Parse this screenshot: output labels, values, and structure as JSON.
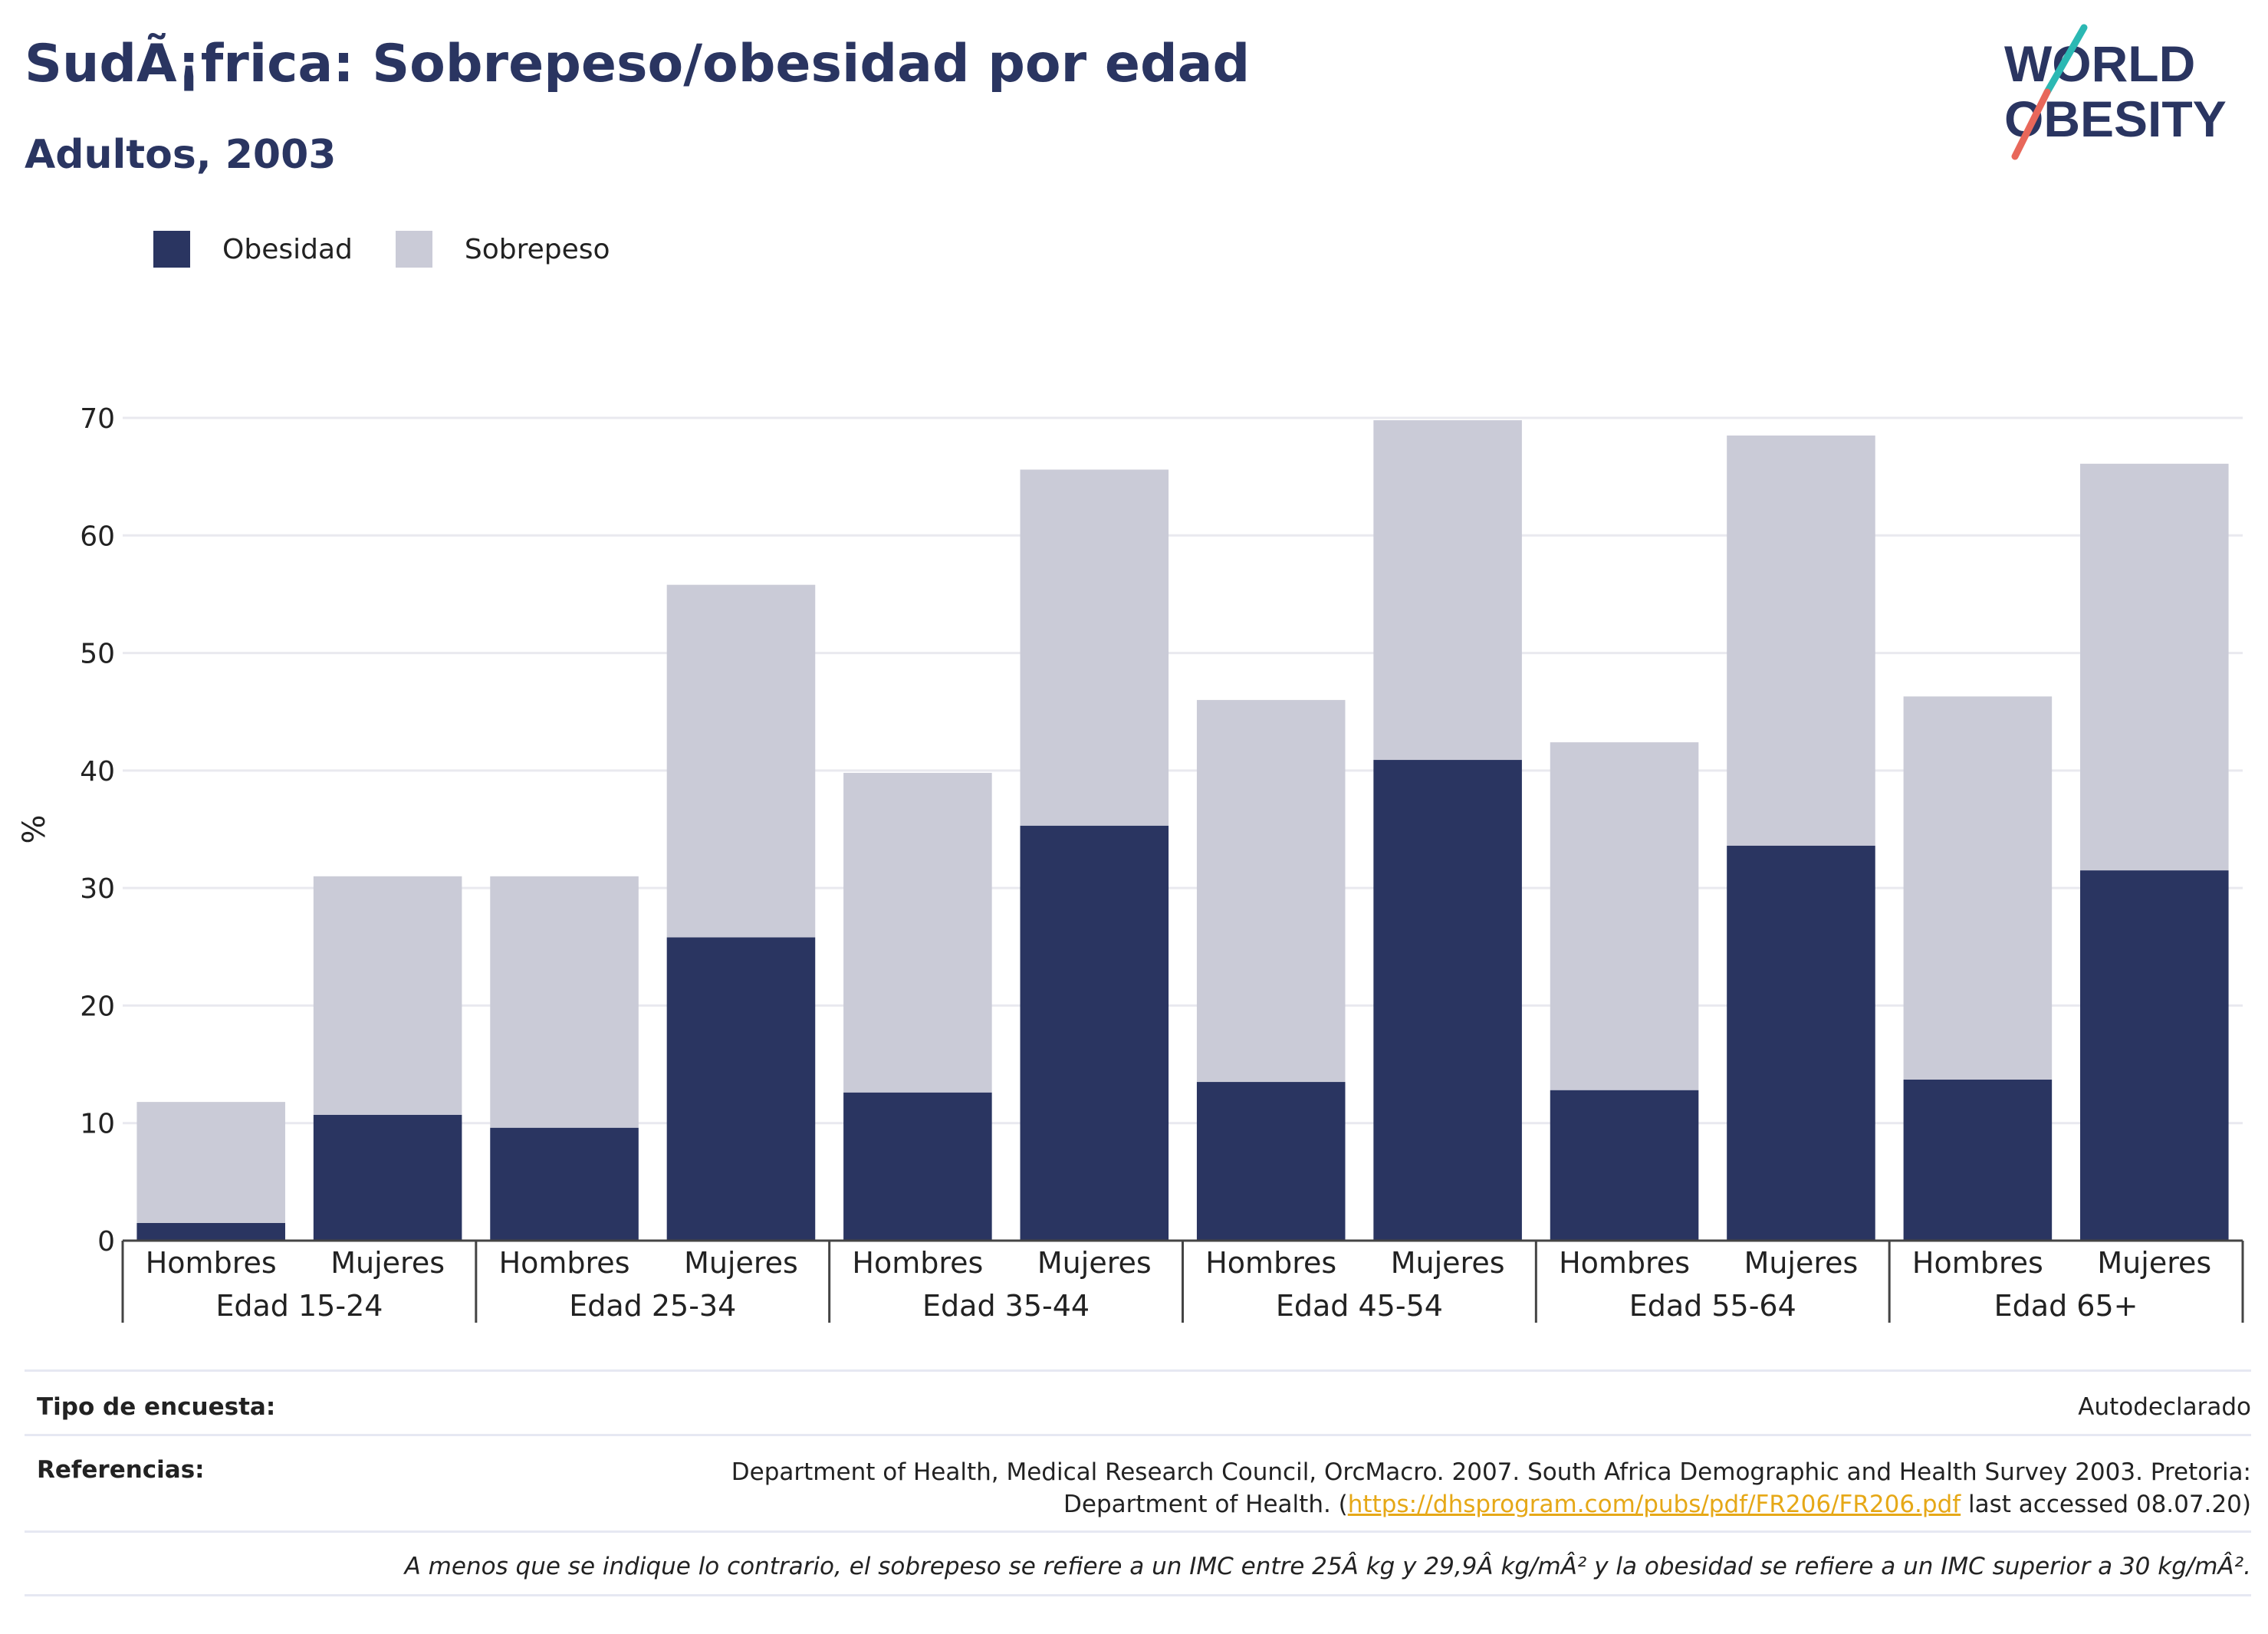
{
  "header": {
    "title": "SudÃ¡frica: Sobrepeso/obesidad por edad",
    "subtitle": "Adultos, 2003"
  },
  "logo": {
    "line1": "WORLD",
    "line2": "OBESITY"
  },
  "colors": {
    "obesity": "#2a3561",
    "overweight": "#cacbd7",
    "grid": "#e9e9ef",
    "link": "#e6a817"
  },
  "chart_data": {
    "type": "bar",
    "stacked": true,
    "ylabel": "%",
    "ylim": [
      0,
      70
    ],
    "yticks": [
      0,
      10,
      20,
      30,
      40,
      50,
      60,
      70
    ],
    "groups": [
      "Edad 15-24",
      "Edad 25-34",
      "Edad 35-44",
      "Edad 45-54",
      "Edad 55-64",
      "Edad 65+"
    ],
    "subcategories": [
      "Hombres",
      "Mujeres"
    ],
    "legend_position": "top-left",
    "grid": true,
    "series": [
      {
        "name": "Obesidad",
        "values": [
          1.5,
          10.7,
          9.6,
          25.8,
          12.6,
          35.3,
          13.5,
          40.9,
          12.8,
          33.6,
          13.7,
          31.5
        ]
      },
      {
        "name": "Sobrepeso",
        "values": [
          10.3,
          20.3,
          21.4,
          30.0,
          27.2,
          30.3,
          32.5,
          28.9,
          29.6,
          34.9,
          32.6,
          34.6
        ]
      }
    ]
  },
  "footer": {
    "survey_label": "Tipo de encuesta:",
    "survey_value": "Autodeclarado",
    "refs_label": "Referencias:",
    "refs_line1": "Department of Health, Medical Research Council, OrcMacro. 2007. South Africa Demographic and Health Survey 2003. Pretoria:",
    "refs_line2_pre": "Department of Health. (",
    "refs_link": "https://dhsprogram.com/pubs/pdf/FR206/FR206.pdf",
    "refs_line2_post": " last accessed 08.07.20)",
    "note": "A menos que se indique lo contrario, el sobrepeso se refiere a un IMC entre 25Â kg y 29,9Â kg/mÂ² y la obesidad se refiere a un IMC superior a 30 kg/mÂ²."
  }
}
